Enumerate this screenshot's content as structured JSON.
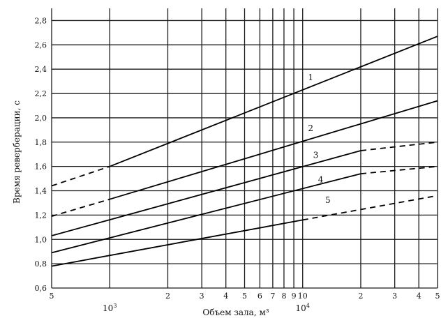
{
  "chart_data": {
    "type": "line",
    "title": "",
    "xlabel": "Объем зала, м³",
    "ylabel": "Время реверберации, с",
    "xscale": "log",
    "xlim": [
      500,
      50000
    ],
    "ylim": [
      0.6,
      2.9
    ],
    "grid": true,
    "y_ticks": [
      "0,6",
      "0,8",
      "1,0",
      "1,2",
      "1,4",
      "1,6",
      "1,8",
      "2,0",
      "2,2",
      "2,4",
      "2,6",
      "2,8"
    ],
    "x_ticks": [
      {
        "value": 500,
        "label": "5"
      },
      {
        "value": 1000,
        "label": ""
      },
      {
        "value": 2000,
        "label": "2"
      },
      {
        "value": 3000,
        "label": "3"
      },
      {
        "value": 4000,
        "label": "4"
      },
      {
        "value": 5000,
        "label": "5"
      },
      {
        "value": 6000,
        "label": "6"
      },
      {
        "value": 7000,
        "label": "7"
      },
      {
        "value": 8000,
        "label": "8"
      },
      {
        "value": 9000,
        "label": "9"
      },
      {
        "value": 10000,
        "label": "10"
      },
      {
        "value": 20000,
        "label": "2"
      },
      {
        "value": 30000,
        "label": "3"
      },
      {
        "value": 40000,
        "label": "4"
      },
      {
        "value": 50000,
        "label": "5"
      }
    ],
    "decade_labels": [
      {
        "value": 1000,
        "base": "10",
        "exp": "3"
      },
      {
        "value": 10000,
        "base": "10",
        "exp": "4"
      }
    ],
    "series": [
      {
        "name": "1",
        "dashed": {
          "x": [
            500,
            1000
          ],
          "y": [
            1.44,
            1.6
          ]
        },
        "solid": {
          "x": [
            1000,
            50000
          ],
          "y": [
            1.6,
            2.67
          ]
        }
      },
      {
        "name": "2",
        "dashed": {
          "x": [
            500,
            1000
          ],
          "y": [
            1.19,
            1.33
          ]
        },
        "solid": {
          "x": [
            1000,
            50000
          ],
          "y": [
            1.33,
            2.14
          ]
        }
      },
      {
        "name": "3",
        "solid": {
          "x": [
            500,
            20000
          ],
          "y": [
            1.03,
            1.73
          ]
        },
        "dashed": {
          "x": [
            20000,
            50000
          ],
          "y": [
            1.73,
            1.8
          ]
        }
      },
      {
        "name": "4",
        "solid": {
          "x": [
            500,
            20000
          ],
          "y": [
            0.89,
            1.54
          ]
        },
        "dashed": {
          "x": [
            20000,
            50000
          ],
          "y": [
            1.54,
            1.6
          ]
        }
      },
      {
        "name": "5",
        "solid": {
          "x": [
            500,
            10000
          ],
          "y": [
            0.78,
            1.16
          ]
        },
        "dashed": {
          "x": [
            10000,
            50000
          ],
          "y": [
            1.16,
            1.36
          ]
        }
      }
    ],
    "curve_labels": [
      {
        "text": "1",
        "x": 11000,
        "y": 2.31
      },
      {
        "text": "2",
        "x": 11000,
        "y": 1.89
      },
      {
        "text": "3",
        "x": 11700,
        "y": 1.67
      },
      {
        "text": "4",
        "x": 12400,
        "y": 1.47
      },
      {
        "text": "5",
        "x": 13500,
        "y": 1.3
      }
    ]
  }
}
